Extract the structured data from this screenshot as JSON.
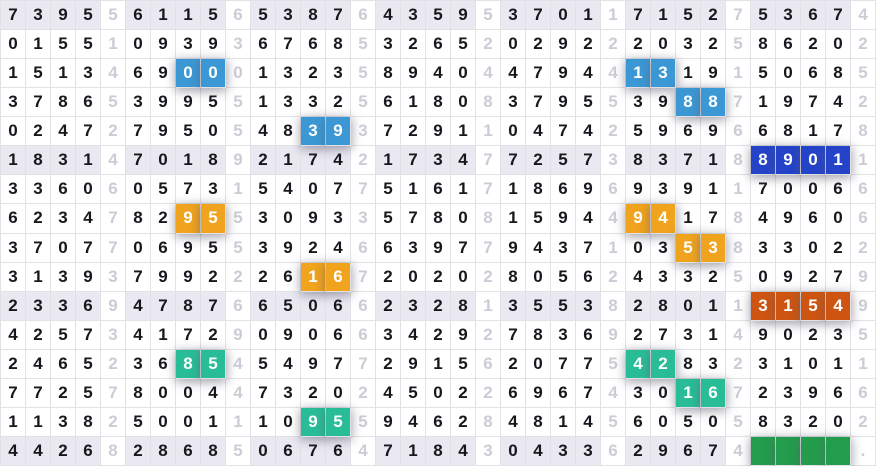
{
  "grid": {
    "columns": 35,
    "row_count": 16,
    "light_columns": [
      5,
      10,
      15,
      20,
      25,
      30,
      35
    ],
    "empty_char": "_",
    "rows": [
      {
        "digits": "73955611565387643595370117152753674",
        "shaded": true
      },
      {
        "digits": "01551093936768532652029222032586202",
        "shaded": false
      },
      {
        "digits": "15134690001323589404479441319150685",
        "shaded": false
      },
      {
        "digits": "37865399551332561808379553988719742",
        "shaded": false
      },
      {
        "digits": "02472795054839372911047425969668178",
        "shaded": false
      },
      {
        "digits": "18314701892174217347725738371889011",
        "shaded": true
      },
      {
        "digits": "33606057315407751617186969391170066",
        "shaded": false
      },
      {
        "digits": "62347829553093357808159449417849606",
        "shaded": false
      },
      {
        "digits": "37077069553924663977943710353833022",
        "shaded": false
      },
      {
        "digits": "31393799222616720202805624332509279",
        "shaded": false
      },
      {
        "digits": "23369478766506623281355382801131549",
        "shaded": true
      },
      {
        "digits": "42573417290906634292783692731490235",
        "shaded": false
      },
      {
        "digits": "24652368545497729156207754283231011",
        "shaded": false
      },
      {
        "digits": "77257800447320245022696743016723966",
        "shaded": false
      },
      {
        "digits": "11382500111095594628481456050583202",
        "shaded": false
      },
      {
        "digits": "442682868506764718430433629674____.",
        "shaded": true
      }
    ],
    "highlights": [
      {
        "row": 3,
        "cols": [
          8,
          9
        ],
        "color": "blue"
      },
      {
        "row": 3,
        "cols": [
          26,
          27
        ],
        "color": "blue"
      },
      {
        "row": 4,
        "cols": [
          28,
          29
        ],
        "color": "blue"
      },
      {
        "row": 5,
        "cols": [
          13,
          14
        ],
        "color": "blue"
      },
      {
        "row": 6,
        "cols": [
          31,
          32,
          33,
          34
        ],
        "color": "darkblue"
      },
      {
        "row": 8,
        "cols": [
          8,
          9
        ],
        "color": "orange"
      },
      {
        "row": 8,
        "cols": [
          26,
          27
        ],
        "color": "orange"
      },
      {
        "row": 9,
        "cols": [
          28,
          29
        ],
        "color": "orange"
      },
      {
        "row": 10,
        "cols": [
          13,
          14
        ],
        "color": "orange"
      },
      {
        "row": 11,
        "cols": [
          31,
          32,
          33,
          34
        ],
        "color": "darkorange"
      },
      {
        "row": 13,
        "cols": [
          8,
          9
        ],
        "color": "teal"
      },
      {
        "row": 13,
        "cols": [
          26,
          27
        ],
        "color": "teal"
      },
      {
        "row": 14,
        "cols": [
          28,
          29
        ],
        "color": "teal"
      },
      {
        "row": 15,
        "cols": [
          13,
          14
        ],
        "color": "teal"
      },
      {
        "row": 16,
        "cols": [
          31,
          32,
          33,
          34
        ],
        "color": "green"
      }
    ]
  },
  "colors": {
    "blue": "#3b98d4",
    "darkblue": "#2443c9",
    "orange": "#f0a31d",
    "darkorange": "#cd5511",
    "teal": "#29bd97",
    "green": "#249c4d",
    "shaded_row_bg": "#eae8f0",
    "grid_line": "#e2e2e6",
    "digit_color": "#17171d",
    "light_digit_color": "#cdccd6"
  }
}
